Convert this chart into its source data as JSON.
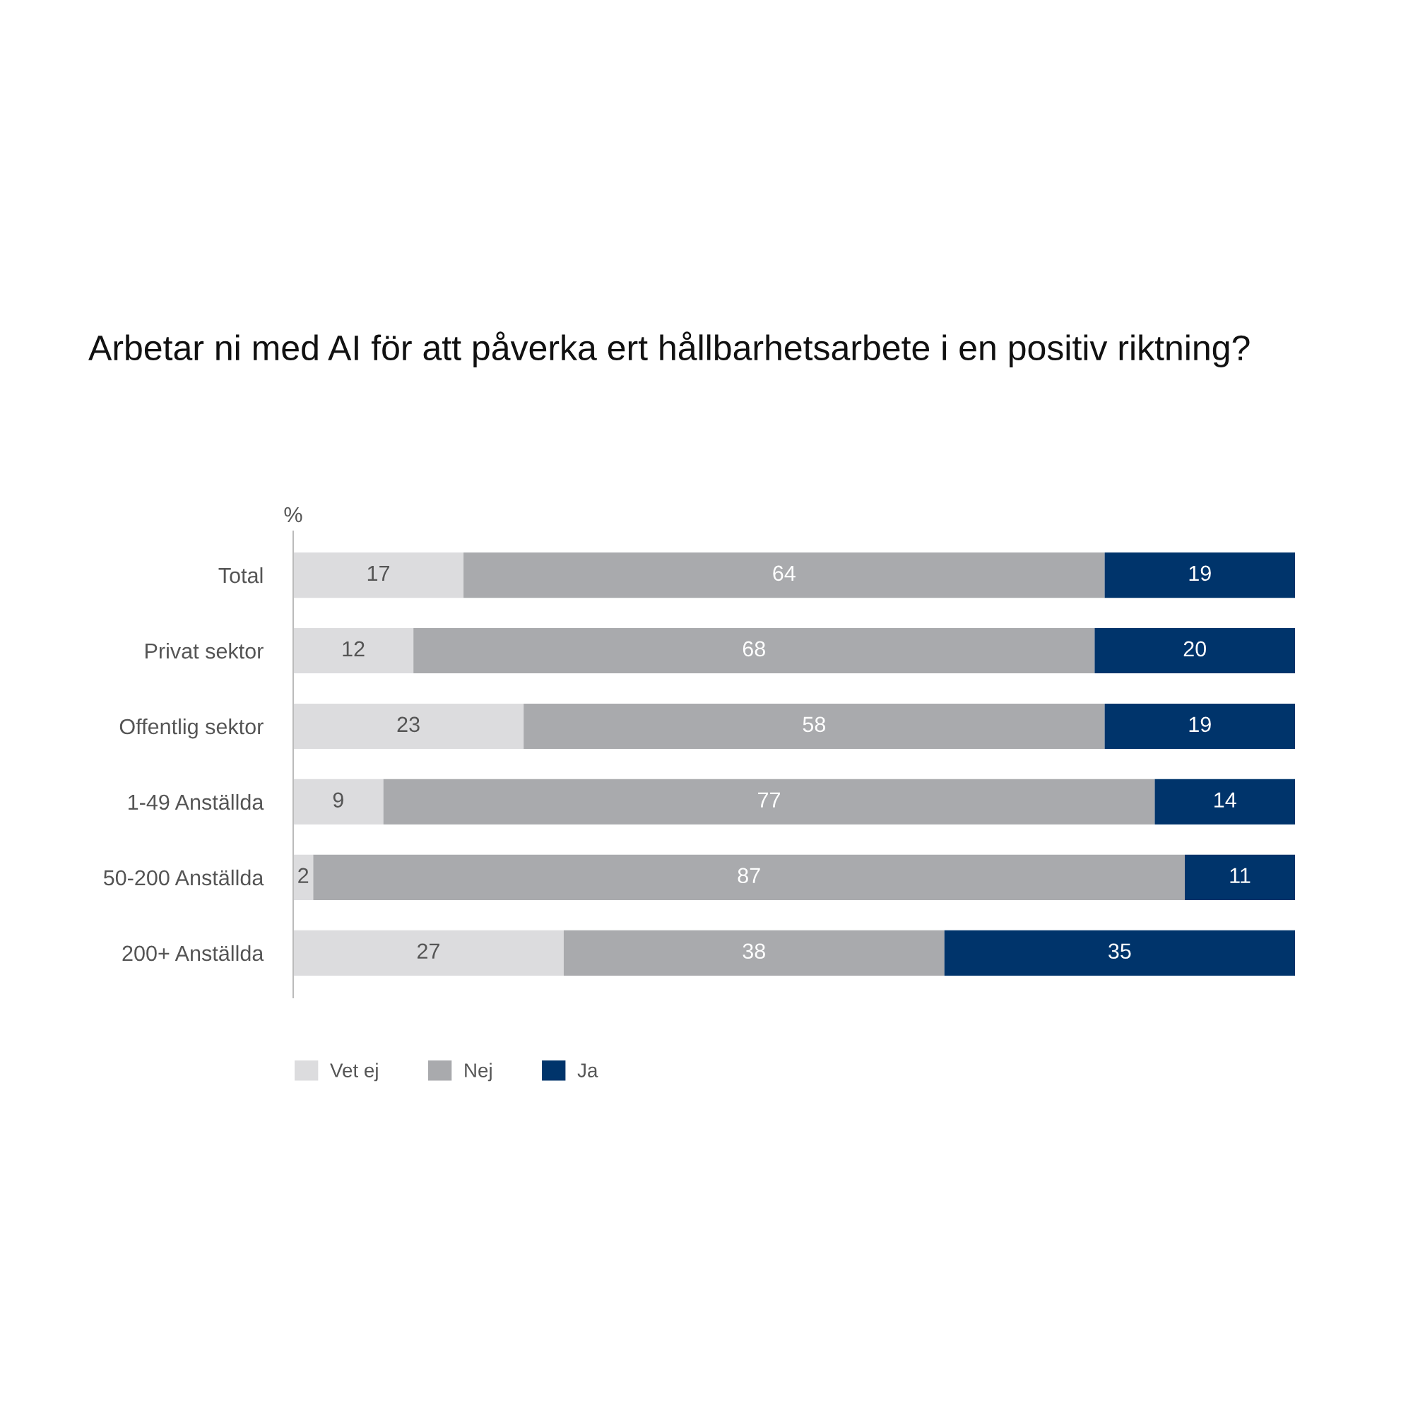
{
  "chart_data": {
    "type": "bar",
    "orientation": "horizontal",
    "stacked": true,
    "title": "Arbetar ni med AI för att påverka ert hållbarhetsarbete i en positiv riktning?",
    "annotations": [
      "%"
    ],
    "categories": [
      "Total",
      "Privat sektor",
      "Offentlig sektor",
      "1-49 Anställda",
      "50-200 Anställda",
      "200+ Anställda"
    ],
    "series": [
      {
        "name": "Vet ej",
        "color": "#dcdcde",
        "values": [
          17,
          12,
          23,
          9,
          2,
          27
        ]
      },
      {
        "name": "Nej",
        "color": "#a9aaad",
        "values": [
          64,
          68,
          58,
          77,
          87,
          38
        ]
      },
      {
        "name": "Ja",
        "color": "#00346b",
        "values": [
          19,
          20,
          19,
          14,
          11,
          35
        ]
      }
    ],
    "xlim": [
      0,
      100
    ],
    "tick_labels": "y",
    "data_labels": true,
    "grid": false,
    "legend": "bottom left"
  }
}
